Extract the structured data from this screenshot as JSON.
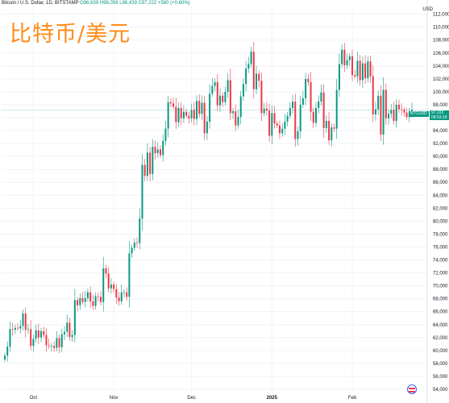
{
  "header": {
    "symbol_text": "Bitcoin / U.S. Dollar, 1D, BITSTAMP",
    "open": "O96,639",
    "high": "H98,058",
    "low": "L96,439",
    "close": "C97,222",
    "change": "+580 (+0.60%)"
  },
  "overlay_title": "比特币/美元",
  "price_axis_unit": "USD",
  "last_price": {
    "symbol": "BTCUSD",
    "value": "97,222",
    "countdown": "08:53:19"
  },
  "colors": {
    "up": "#089981",
    "down": "#f23645",
    "title": "#ff8c1a"
  },
  "chart_data": {
    "type": "candlestick",
    "title": "",
    "xlabel": "",
    "ylabel": "",
    "ylim": [
      53500,
      113200
    ],
    "y_ticks": [
      54000,
      56000,
      58000,
      60000,
      62000,
      64000,
      66000,
      68000,
      70000,
      72000,
      74000,
      76000,
      78000,
      80000,
      82000,
      84000,
      86000,
      88000,
      90000,
      92000,
      94000,
      96000,
      98000,
      100000,
      102000,
      104000,
      106000,
      108000,
      110000,
      112000
    ],
    "x_ticks": [
      {
        "label": "Oct",
        "index": 11
      },
      {
        "label": "Nov",
        "index": 42
      },
      {
        "label": "Dec",
        "index": 72
      },
      {
        "label": "2025",
        "index": 103
      },
      {
        "label": "Feb",
        "index": 134
      }
    ],
    "grid": true,
    "close": [
      59200,
      60600,
      63300,
      63200,
      63500,
      63400,
      63800,
      65700,
      63200,
      63300,
      60700,
      61800,
      63100,
      62000,
      63000,
      62400,
      60800,
      60700,
      60700,
      60400,
      61900,
      60500,
      62500,
      62900,
      64300,
      62100,
      62400,
      67800,
      67000,
      68100,
      67500,
      68100,
      69000,
      67600,
      66900,
      68400,
      68300,
      67500,
      72700,
      71900,
      69600,
      70200,
      69500,
      68200,
      67600,
      69000,
      69000,
      68300,
      75000,
      75900,
      76700,
      76600,
      80400,
      88700,
      87000,
      90600,
      87300,
      91500,
      90500,
      91100,
      90200,
      92400,
      94300,
      98400,
      98200,
      97700,
      95300,
      97500,
      95900,
      96900,
      96300,
      95900,
      97200,
      95800,
      98600,
      96600,
      98300,
      93600,
      95400,
      99700,
      100900,
      101500,
      97900,
      99400,
      98400,
      100000,
      101800,
      96700,
      97000,
      94800,
      96100,
      99300,
      101200,
      103600,
      104300,
      106200,
      100400,
      102800,
      101700,
      96700,
      97400,
      97100,
      93200,
      96700,
      95100,
      94800,
      93600,
      94300,
      95400,
      96300,
      97500,
      98500,
      92700,
      93900,
      98000,
      99000,
      102000,
      101500,
      96900,
      95200,
      97500,
      98500,
      99900,
      94400,
      95500,
      92500,
      94500,
      94300,
      100300,
      104300,
      106500,
      104100,
      104900,
      105500,
      102600,
      102400,
      104800,
      101800,
      104400,
      102100,
      104700,
      102400,
      96500,
      97300,
      99400,
      93400,
      100300,
      95900,
      96600,
      97200,
      95500,
      98000,
      97300,
      97200,
      96800,
      96100,
      96600,
      97200
    ],
    "open": [
      58600,
      59200,
      60600,
      63300,
      63200,
      63500,
      63400,
      63800,
      65700,
      63200,
      63300,
      60700,
      61800,
      63100,
      62000,
      63000,
      62400,
      60800,
      60700,
      60700,
      60400,
      61900,
      60500,
      62500,
      62900,
      64300,
      62100,
      62400,
      67800,
      67000,
      68100,
      67500,
      68100,
      69000,
      67600,
      66900,
      68400,
      68300,
      67500,
      72700,
      71900,
      69600,
      70200,
      69500,
      68200,
      67600,
      69000,
      69000,
      68300,
      75000,
      75900,
      76700,
      76600,
      80400,
      88700,
      87000,
      90600,
      87300,
      91500,
      90500,
      91100,
      90200,
      92400,
      94300,
      98400,
      98200,
      97700,
      95300,
      97500,
      95900,
      96900,
      96300,
      95900,
      97200,
      95800,
      98600,
      96600,
      98300,
      93600,
      95400,
      99700,
      100900,
      101500,
      97900,
      99400,
      98400,
      100000,
      101800,
      96700,
      97000,
      94800,
      96100,
      99300,
      101200,
      103600,
      104300,
      106200,
      100400,
      102800,
      101700,
      96700,
      97400,
      97100,
      93200,
      96700,
      95100,
      94800,
      93600,
      94300,
      95400,
      96300,
      97500,
      98500,
      92700,
      93900,
      98000,
      99000,
      102000,
      101500,
      96900,
      95200,
      97500,
      98500,
      99900,
      94400,
      95500,
      92500,
      94500,
      94300,
      100300,
      104300,
      106500,
      104100,
      104900,
      105500,
      102600,
      102400,
      104800,
      101800,
      104400,
      102100,
      104700,
      102400,
      96500,
      97300,
      99400,
      93400,
      100300,
      95900,
      96600,
      97200,
      95500,
      98000,
      97300,
      97200,
      96800,
      96100,
      96600
    ]
  }
}
